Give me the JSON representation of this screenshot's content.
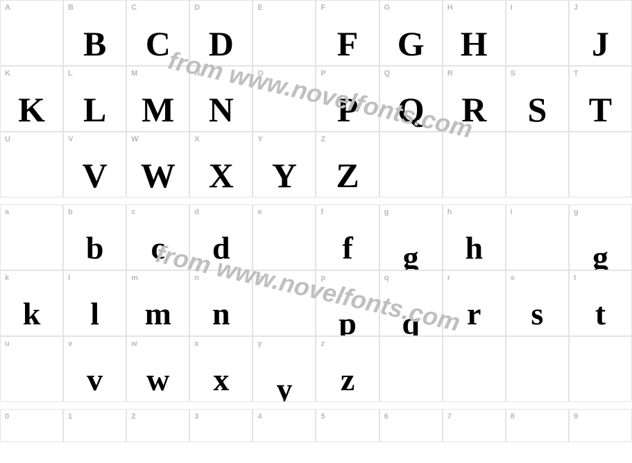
{
  "watermark": "from www.novelfonts.com",
  "rows": [
    {
      "type": "tall",
      "cells": [
        {
          "label": "A",
          "glyph": ""
        },
        {
          "label": "B",
          "glyph": "B"
        },
        {
          "label": "C",
          "glyph": "C"
        },
        {
          "label": "D",
          "glyph": "D"
        },
        {
          "label": "E",
          "glyph": ""
        },
        {
          "label": "F",
          "glyph": "F"
        },
        {
          "label": "G",
          "glyph": "G"
        },
        {
          "label": "H",
          "glyph": "H"
        },
        {
          "label": "I",
          "glyph": ""
        },
        {
          "label": "J",
          "glyph": "J"
        }
      ]
    },
    {
      "type": "tall",
      "cells": [
        {
          "label": "K",
          "glyph": "K"
        },
        {
          "label": "L",
          "glyph": "L"
        },
        {
          "label": "M",
          "glyph": "M"
        },
        {
          "label": "N",
          "glyph": "N"
        },
        {
          "label": "O",
          "glyph": ""
        },
        {
          "label": "P",
          "glyph": "P"
        },
        {
          "label": "Q",
          "glyph": "Q"
        },
        {
          "label": "R",
          "glyph": "R"
        },
        {
          "label": "S",
          "glyph": "S"
        },
        {
          "label": "T",
          "glyph": "T"
        }
      ]
    },
    {
      "type": "tall",
      "cells": [
        {
          "label": "U",
          "glyph": ""
        },
        {
          "label": "V",
          "glyph": "V"
        },
        {
          "label": "W",
          "glyph": "W"
        },
        {
          "label": "X",
          "glyph": "X"
        },
        {
          "label": "Y",
          "glyph": "Y"
        },
        {
          "label": "Z",
          "glyph": "Z"
        },
        {
          "label": "",
          "glyph": ""
        },
        {
          "label": "",
          "glyph": ""
        },
        {
          "label": "",
          "glyph": ""
        },
        {
          "label": "",
          "glyph": ""
        }
      ]
    },
    {
      "type": "tall",
      "cells": [
        {
          "label": "a",
          "glyph": ""
        },
        {
          "label": "b",
          "glyph": "b"
        },
        {
          "label": "c",
          "glyph": "c"
        },
        {
          "label": "d",
          "glyph": "d"
        },
        {
          "label": "e",
          "glyph": ""
        },
        {
          "label": "f",
          "glyph": "f"
        },
        {
          "label": "g",
          "glyph": "g",
          "desc": true
        },
        {
          "label": "h",
          "glyph": "h"
        },
        {
          "label": "i",
          "glyph": ""
        },
        {
          "label": "g",
          "glyph": "g",
          "desc": true
        }
      ]
    },
    {
      "type": "tall",
      "cells": [
        {
          "label": "k",
          "glyph": "k"
        },
        {
          "label": "l",
          "glyph": "l"
        },
        {
          "label": "m",
          "glyph": "m"
        },
        {
          "label": "n",
          "glyph": "n"
        },
        {
          "label": "o",
          "glyph": ""
        },
        {
          "label": "p",
          "glyph": "p",
          "desc": true
        },
        {
          "label": "q",
          "glyph": "q",
          "desc": true
        },
        {
          "label": "r",
          "glyph": "r"
        },
        {
          "label": "s",
          "glyph": "s"
        },
        {
          "label": "t",
          "glyph": "t"
        }
      ]
    },
    {
      "type": "tall",
      "cells": [
        {
          "label": "u",
          "glyph": ""
        },
        {
          "label": "v",
          "glyph": "v"
        },
        {
          "label": "w",
          "glyph": "w"
        },
        {
          "label": "x",
          "glyph": "x"
        },
        {
          "label": "y",
          "glyph": "y",
          "desc": true
        },
        {
          "label": "z",
          "glyph": "z"
        },
        {
          "label": "",
          "glyph": ""
        },
        {
          "label": "",
          "glyph": ""
        },
        {
          "label": "",
          "glyph": ""
        },
        {
          "label": "",
          "glyph": ""
        }
      ]
    },
    {
      "type": "short",
      "cells": [
        {
          "label": "0",
          "glyph": ""
        },
        {
          "label": "1",
          "glyph": ""
        },
        {
          "label": "2",
          "glyph": ""
        },
        {
          "label": "3",
          "glyph": ""
        },
        {
          "label": "4",
          "glyph": ""
        },
        {
          "label": "5",
          "glyph": ""
        },
        {
          "label": "6",
          "glyph": ""
        },
        {
          "label": "7",
          "glyph": ""
        },
        {
          "label": "8",
          "glyph": ""
        },
        {
          "label": "9",
          "glyph": ""
        }
      ]
    }
  ]
}
